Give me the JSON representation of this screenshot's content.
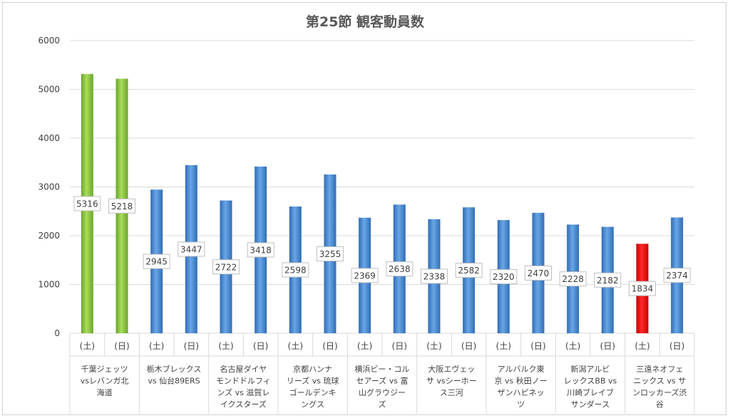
{
  "chart_data": {
    "type": "bar",
    "title": "第25節 観客動員数",
    "ylim": [
      0,
      6000
    ],
    "yticks": [
      0,
      1000,
      2000,
      3000,
      4000,
      5000,
      6000
    ],
    "grid": true,
    "legend": "none",
    "groups": [
      {
        "match": [
          "千葉ジェッツ",
          "vsレバンガ北",
          "海道"
        ],
        "bars": [
          {
            "day": "(土)",
            "value": 5316,
            "color": "green"
          },
          {
            "day": "(日)",
            "value": 5218,
            "color": "green"
          }
        ]
      },
      {
        "match": [
          "栃木ブレックス",
          "vs 仙台89ERS"
        ],
        "bars": [
          {
            "day": "(土)",
            "value": 2945,
            "color": "blue"
          },
          {
            "day": "(日)",
            "value": 3447,
            "color": "blue"
          }
        ]
      },
      {
        "match": [
          "名古屋ダイヤ",
          "モンドドルフィ",
          "ンズ vs 滋賀レ",
          "イクスターズ"
        ],
        "bars": [
          {
            "day": "(土)",
            "value": 2722,
            "color": "blue"
          },
          {
            "day": "(日)",
            "value": 3418,
            "color": "blue"
          }
        ]
      },
      {
        "match": [
          "京都ハンナ",
          "リーズ vs 琉球",
          "ゴールデンキ",
          "ングス"
        ],
        "bars": [
          {
            "day": "(土)",
            "value": 2598,
            "color": "blue"
          },
          {
            "day": "(日)",
            "value": 3255,
            "color": "blue"
          }
        ]
      },
      {
        "match": [
          "横浜ビー・コル",
          "セアーズ vs 富",
          "山グラウジー",
          "ズ"
        ],
        "bars": [
          {
            "day": "(土)",
            "value": 2369,
            "color": "blue"
          },
          {
            "day": "(日)",
            "value": 2638,
            "color": "blue"
          }
        ]
      },
      {
        "match": [
          "大阪エヴェッ",
          "サ vsシーホー",
          "ス三河"
        ],
        "bars": [
          {
            "day": "(土)",
            "value": 2338,
            "color": "blue"
          },
          {
            "day": "(日)",
            "value": 2582,
            "color": "blue"
          }
        ]
      },
      {
        "match": [
          "アルバルク東",
          "京 vs 秋田ノー",
          "ザンハピネッ",
          "ツ"
        ],
        "bars": [
          {
            "day": "(土)",
            "value": 2320,
            "color": "blue"
          },
          {
            "day": "(日)",
            "value": 2470,
            "color": "blue"
          }
        ]
      },
      {
        "match": [
          "新潟アルビ",
          "レックスBB vs",
          "川崎ブレイブ",
          "サンダース"
        ],
        "bars": [
          {
            "day": "(土)",
            "value": 2228,
            "color": "blue"
          },
          {
            "day": "(日)",
            "value": 2182,
            "color": "blue"
          }
        ]
      },
      {
        "match": [
          "三遠ネオフェ",
          "ニックス vs サ",
          "ンロッカーズ渋",
          "谷"
        ],
        "bars": [
          {
            "day": "(土)",
            "value": 1834,
            "color": "red"
          },
          {
            "day": "(日)",
            "value": 2374,
            "color": "blue"
          }
        ]
      }
    ]
  },
  "colors": {
    "green": "#8cc63e",
    "blue": "#4f8fd4",
    "red": "#ff0000",
    "grid": "#d9d9d9",
    "text": "#404040",
    "title": "#595959"
  }
}
